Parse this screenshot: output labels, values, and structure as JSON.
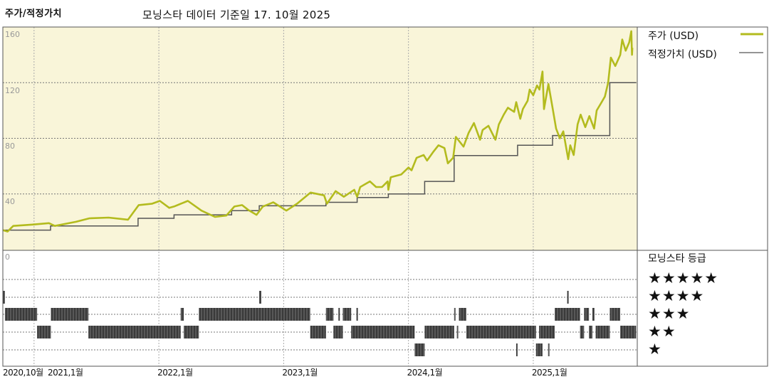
{
  "header": {
    "title": "주가/적정가치",
    "subtitle": "모닝스타 데이터 기준일 17. 10월 2025"
  },
  "legend": {
    "price_label": "주가 (USD)",
    "fair_value_label": "적정가치 (USD)",
    "rating_title": "모닝스타 등급",
    "star_rows": [
      "★★★★★",
      "★★★★",
      "★★★",
      "★★",
      "★"
    ]
  },
  "colors": {
    "price": "#b3bb1e",
    "fair_value": "#555555",
    "plot_background": "#f9f5d9",
    "rating_bar": "#3a3a3a"
  },
  "chart_data": [
    {
      "type": "line",
      "title": "",
      "xlabel": "",
      "ylabel": "",
      "xlim": [
        "2020-10-01",
        "2025-11-01"
      ],
      "ylim": [
        0,
        160
      ],
      "y_ticks": [
        "160",
        "120",
        "80",
        "40",
        "0"
      ],
      "x_ticks": [
        {
          "date": "2020-10-01",
          "label": "2020,10월"
        },
        {
          "date": "2021-01-01",
          "label": "2021,1월"
        },
        {
          "date": "2022-01-01",
          "label": "2022,1월"
        },
        {
          "date": "2023-01-01",
          "label": "2023,1월"
        },
        {
          "date": "2024-01-01",
          "label": "2024,1월"
        },
        {
          "date": "2025-01-01",
          "label": "2025,1월"
        }
      ],
      "grid": true,
      "legend_position": "right",
      "series": [
        {
          "name": "주가 (USD)",
          "style": "line",
          "points": [
            [
              "2020-10-01",
              14
            ],
            [
              "2020-10-15",
              13
            ],
            [
              "2020-11-01",
              17
            ],
            [
              "2020-12-27",
              18
            ],
            [
              "2021-02-14",
              19
            ],
            [
              "2021-03-01",
              17
            ],
            [
              "2021-05-02",
              20
            ],
            [
              "2021-06-11",
              22.5
            ],
            [
              "2021-08-06",
              23
            ],
            [
              "2021-10-02",
              21.5
            ],
            [
              "2021-11-03",
              32
            ],
            [
              "2021-12-12",
              33
            ],
            [
              "2022-01-04",
              35
            ],
            [
              "2022-02-01",
              30
            ],
            [
              "2022-02-15",
              31
            ],
            [
              "2022-03-25",
              35
            ],
            [
              "2022-05-04",
              28
            ],
            [
              "2022-06-13",
              23.5
            ],
            [
              "2022-07-16",
              24.5
            ],
            [
              "2022-08-09",
              31
            ],
            [
              "2022-09-01",
              32
            ],
            [
              "2022-09-19",
              28.5
            ],
            [
              "2022-10-13",
              25
            ],
            [
              "2022-11-01",
              31
            ],
            [
              "2022-12-01",
              34
            ],
            [
              "2023-01-09",
              28
            ],
            [
              "2023-02-10",
              33
            ],
            [
              "2023-03-19",
              41
            ],
            [
              "2023-04-28",
              39
            ],
            [
              "2023-05-06",
              33
            ],
            [
              "2023-06-01",
              42
            ],
            [
              "2023-06-25",
              38
            ],
            [
              "2023-07-25",
              43
            ],
            [
              "2023-08-03",
              38
            ],
            [
              "2023-08-12",
              45
            ],
            [
              "2023-09-10",
              49
            ],
            [
              "2023-09-28",
              45
            ],
            [
              "2023-10-15",
              45
            ],
            [
              "2023-11-01",
              49
            ],
            [
              "2023-11-03",
              43
            ],
            [
              "2023-11-10",
              52
            ],
            [
              "2023-12-10",
              54
            ],
            [
              "2024-01-01",
              59
            ],
            [
              "2024-01-10",
              57
            ],
            [
              "2024-01-25",
              66
            ],
            [
              "2024-02-15",
              68
            ],
            [
              "2024-02-25",
              64
            ],
            [
              "2024-03-12",
              70
            ],
            [
              "2024-03-28",
              75
            ],
            [
              "2024-04-15",
              73
            ],
            [
              "2024-04-25",
              62
            ],
            [
              "2024-05-10",
              66
            ],
            [
              "2024-05-18",
              81
            ],
            [
              "2024-06-10",
              74
            ],
            [
              "2024-06-25",
              84
            ],
            [
              "2024-07-10",
              91
            ],
            [
              "2024-07-28",
              79
            ],
            [
              "2024-08-05",
              86
            ],
            [
              "2024-08-22",
              89
            ],
            [
              "2024-09-12",
              79
            ],
            [
              "2024-09-22",
              90
            ],
            [
              "2024-10-06",
              97
            ],
            [
              "2024-10-18",
              102
            ],
            [
              "2024-11-06",
              99
            ],
            [
              "2024-11-12",
              106
            ],
            [
              "2024-11-24",
              94
            ],
            [
              "2024-12-01",
              101
            ],
            [
              "2024-12-15",
              107
            ],
            [
              "2024-12-21",
              115
            ],
            [
              "2025-01-01",
              111
            ],
            [
              "2025-01-12",
              118
            ],
            [
              "2025-01-19",
              115
            ],
            [
              "2025-01-28",
              128
            ],
            [
              "2025-02-02",
              101
            ],
            [
              "2025-02-15",
              119
            ],
            [
              "2025-02-27",
              102
            ],
            [
              "2025-03-07",
              87
            ],
            [
              "2025-03-18",
              80
            ],
            [
              "2025-03-28",
              85
            ],
            [
              "2025-04-12",
              65
            ],
            [
              "2025-04-18",
              75
            ],
            [
              "2025-04-28",
              68
            ],
            [
              "2025-05-09",
              90
            ],
            [
              "2025-05-18",
              97
            ],
            [
              "2025-06-01",
              88
            ],
            [
              "2025-06-13",
              96
            ],
            [
              "2025-06-27",
              87
            ],
            [
              "2025-07-04",
              100
            ],
            [
              "2025-07-16",
              105
            ],
            [
              "2025-07-28",
              110
            ],
            [
              "2025-08-07",
              120
            ],
            [
              "2025-08-15",
              138
            ],
            [
              "2025-08-28",
              132
            ],
            [
              "2025-09-12",
              140
            ],
            [
              "2025-09-18",
              151
            ],
            [
              "2025-09-28",
              143
            ],
            [
              "2025-10-08",
              149
            ],
            [
              "2025-10-14",
              157
            ],
            [
              "2025-10-16",
              140
            ],
            [
              "2025-10-17",
              145
            ]
          ]
        },
        {
          "name": "적정가치 (USD)",
          "style": "step",
          "points": [
            [
              "2020-10-01",
              14
            ],
            [
              "2021-02-19",
              17
            ],
            [
              "2021-11-01",
              22.5
            ],
            [
              "2022-02-15",
              25
            ],
            [
              "2022-08-01",
              28
            ],
            [
              "2022-10-21",
              31.5
            ],
            [
              "2023-05-03",
              34
            ],
            [
              "2023-08-03",
              37.4
            ],
            [
              "2023-11-03",
              40
            ],
            [
              "2024-02-18",
              49
            ],
            [
              "2024-05-13",
              67.6
            ],
            [
              "2024-11-16",
              75
            ],
            [
              "2025-02-27",
              82
            ],
            [
              "2025-08-12",
              120
            ],
            [
              "2025-10-28",
              120
            ]
          ]
        }
      ]
    },
    {
      "type": "timeline",
      "title": "모닝스타 등급",
      "categories": [
        "5",
        "4",
        "3",
        "2",
        "1"
      ],
      "segments": [
        {
          "stars": 4,
          "start": "2020-10-01",
          "end": "2020-10-07"
        },
        {
          "stars": 4,
          "start": "2022-10-21",
          "end": "2022-10-27"
        },
        {
          "stars": 4,
          "start": "2025-04-09",
          "end": "2025-04-13"
        },
        {
          "stars": 3,
          "start": "2020-10-07",
          "end": "2021-01-10"
        },
        {
          "stars": 3,
          "start": "2021-02-20",
          "end": "2021-06-08"
        },
        {
          "stars": 3,
          "start": "2022-03-04",
          "end": "2022-03-13"
        },
        {
          "stars": 3,
          "start": "2022-04-27",
          "end": "2023-03-18"
        },
        {
          "stars": 3,
          "start": "2023-05-03",
          "end": "2023-05-25"
        },
        {
          "stars": 3,
          "start": "2023-06-09",
          "end": "2023-06-11"
        },
        {
          "stars": 3,
          "start": "2023-06-22",
          "end": "2023-07-16"
        },
        {
          "stars": 3,
          "start": "2023-08-01",
          "end": "2023-08-03"
        },
        {
          "stars": 3,
          "start": "2024-05-13",
          "end": "2024-05-17"
        },
        {
          "stars": 3,
          "start": "2024-05-27",
          "end": "2024-06-18"
        },
        {
          "stars": 3,
          "start": "2025-03-03",
          "end": "2025-05-16"
        },
        {
          "stars": 3,
          "start": "2025-05-28",
          "end": "2025-06-12"
        },
        {
          "stars": 3,
          "start": "2025-06-22",
          "end": "2025-06-28"
        },
        {
          "stars": 3,
          "start": "2025-08-12",
          "end": "2025-09-12"
        },
        {
          "stars": 2,
          "start": "2021-01-10",
          "end": "2021-02-20"
        },
        {
          "stars": 2,
          "start": "2021-06-08",
          "end": "2022-03-04"
        },
        {
          "stars": 2,
          "start": "2022-03-13",
          "end": "2022-04-27"
        },
        {
          "stars": 2,
          "start": "2023-03-18",
          "end": "2023-05-03"
        },
        {
          "stars": 2,
          "start": "2023-05-25",
          "end": "2023-06-22"
        },
        {
          "stars": 2,
          "start": "2023-07-16",
          "end": "2024-01-19"
        },
        {
          "stars": 2,
          "start": "2024-02-18",
          "end": "2024-05-13"
        },
        {
          "stars": 2,
          "start": "2024-05-21",
          "end": "2024-05-25"
        },
        {
          "stars": 2,
          "start": "2024-06-18",
          "end": "2025-01-09"
        },
        {
          "stars": 2,
          "start": "2025-01-18",
          "end": "2025-03-03"
        },
        {
          "stars": 2,
          "start": "2025-05-16",
          "end": "2025-05-28"
        },
        {
          "stars": 2,
          "start": "2025-06-12",
          "end": "2025-06-22"
        },
        {
          "stars": 2,
          "start": "2025-07-01",
          "end": "2025-08-12"
        },
        {
          "stars": 2,
          "start": "2025-09-12",
          "end": "2025-10-28"
        },
        {
          "stars": 1,
          "start": "2024-01-19",
          "end": "2024-02-18"
        },
        {
          "stars": 1,
          "start": "2024-11-12",
          "end": "2024-11-14"
        },
        {
          "stars": 1,
          "start": "2025-01-09",
          "end": "2025-01-28"
        },
        {
          "stars": 1,
          "start": "2025-02-14",
          "end": "2025-02-18"
        }
      ]
    }
  ]
}
